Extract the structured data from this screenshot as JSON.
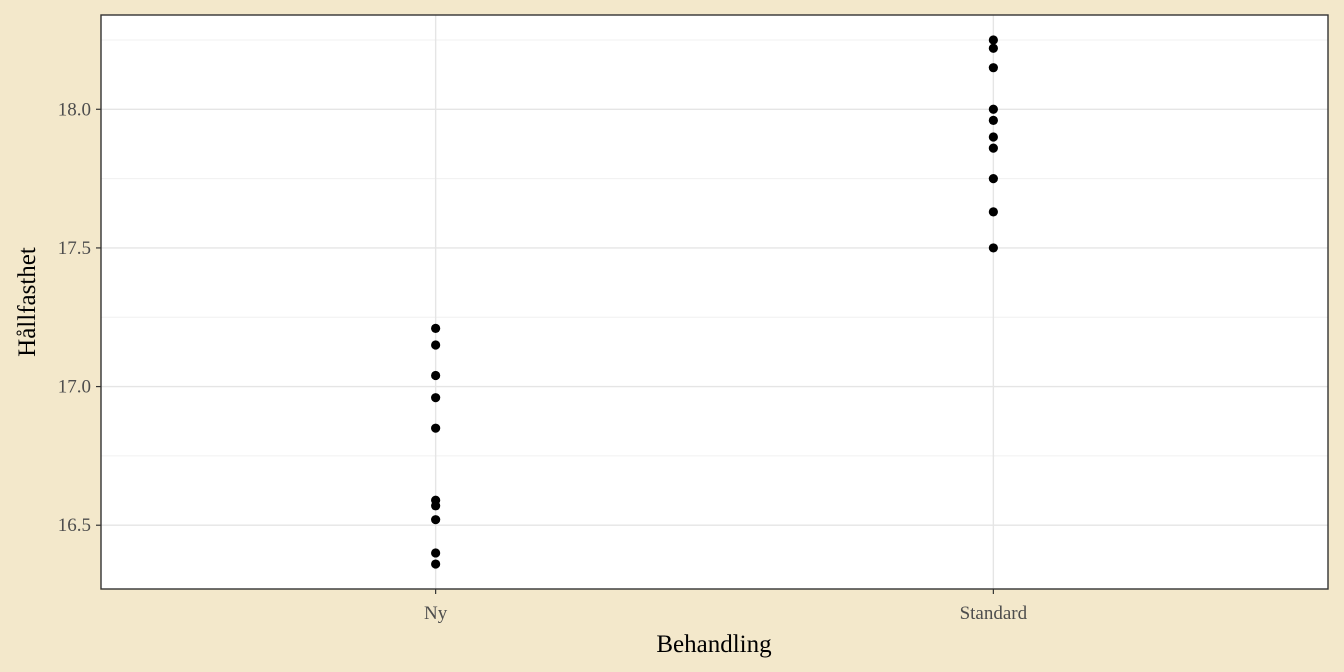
{
  "chart_data": {
    "type": "scatter",
    "title": "",
    "xlabel": "Behandling",
    "ylabel": "Hållfasthet",
    "categories": [
      "Ny",
      "Standard"
    ],
    "ylim": [
      16.27,
      18.34
    ],
    "yticks": [
      16.5,
      17.0,
      17.5,
      18.0
    ],
    "ytick_labels": [
      "16.5",
      "17.0",
      "17.5",
      "18.0"
    ],
    "grid": true,
    "point_color": "#000000",
    "background_color": "#F3E8CB",
    "panel_color": "#FFFFFF",
    "points": [
      {
        "x": "Ny",
        "y": 17.21
      },
      {
        "x": "Ny",
        "y": 17.15
      },
      {
        "x": "Ny",
        "y": 17.04
      },
      {
        "x": "Ny",
        "y": 16.96
      },
      {
        "x": "Ny",
        "y": 16.85
      },
      {
        "x": "Ny",
        "y": 16.59
      },
      {
        "x": "Ny",
        "y": 16.57
      },
      {
        "x": "Ny",
        "y": 16.52
      },
      {
        "x": "Ny",
        "y": 16.4
      },
      {
        "x": "Ny",
        "y": 16.36
      },
      {
        "x": "Standard",
        "y": 18.25
      },
      {
        "x": "Standard",
        "y": 18.22
      },
      {
        "x": "Standard",
        "y": 18.15
      },
      {
        "x": "Standard",
        "y": 18.0
      },
      {
        "x": "Standard",
        "y": 17.96
      },
      {
        "x": "Standard",
        "y": 17.9
      },
      {
        "x": "Standard",
        "y": 17.86
      },
      {
        "x": "Standard",
        "y": 17.75
      },
      {
        "x": "Standard",
        "y": 17.63
      },
      {
        "x": "Standard",
        "y": 17.5
      }
    ]
  }
}
